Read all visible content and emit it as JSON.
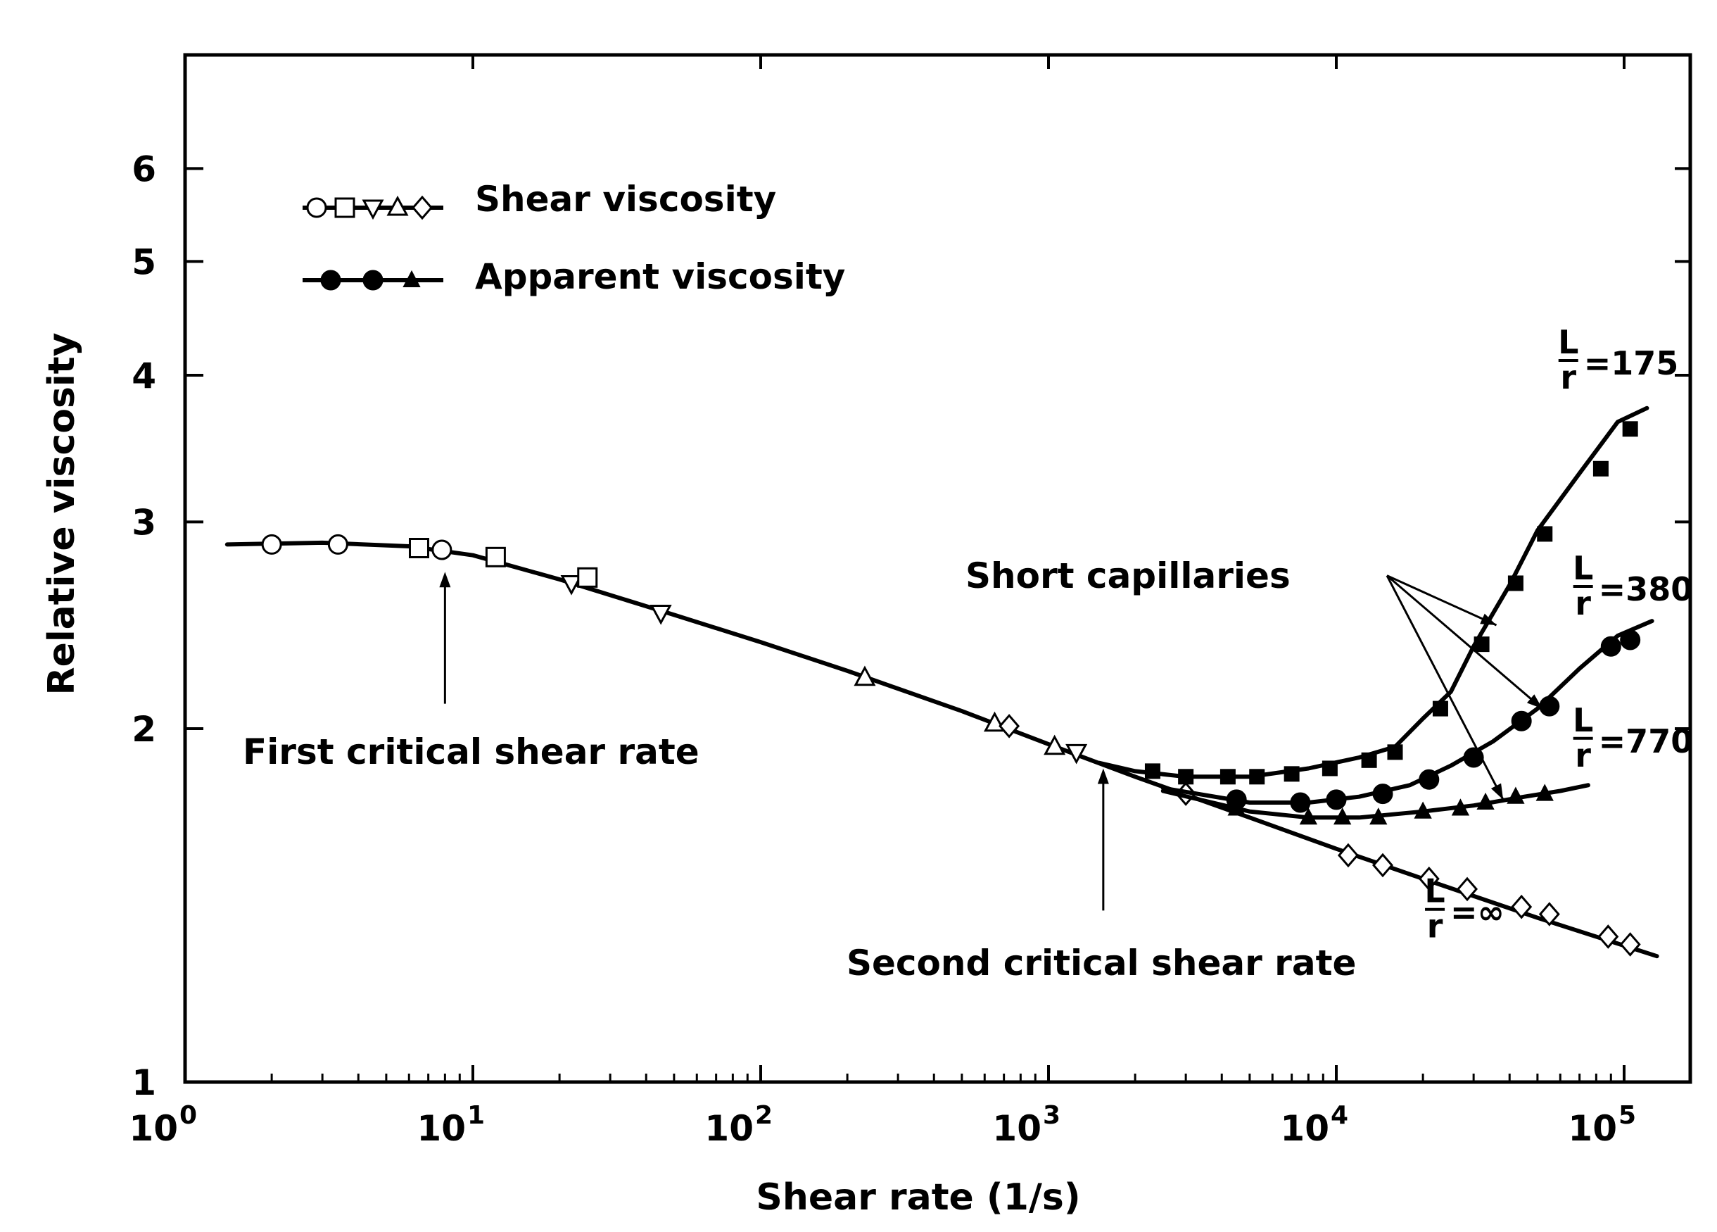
{
  "chart_data": {
    "type": "line",
    "xscale": "log",
    "yscale": "log",
    "xlabel": "Shear rate (1/s)",
    "ylabel": "Relative viscosity",
    "xlim": [
      1,
      150000
    ],
    "ylim": [
      1,
      7.5
    ],
    "x_ticks": [
      {
        "value": 1,
        "base": "10",
        "exp": "0"
      },
      {
        "value": 10,
        "base": "10",
        "exp": "1"
      },
      {
        "value": 100,
        "base": "10",
        "exp": "2"
      },
      {
        "value": 1000,
        "base": "10",
        "exp": "3"
      },
      {
        "value": 10000,
        "base": "10",
        "exp": "4"
      },
      {
        "value": 100000,
        "base": "10",
        "exp": "5"
      }
    ],
    "y_ticks": [
      {
        "value": 1,
        "label": "1"
      },
      {
        "value": 2,
        "label": "2"
      },
      {
        "value": 3,
        "label": "3"
      },
      {
        "value": 4,
        "label": "4"
      },
      {
        "value": 5,
        "label": "5"
      },
      {
        "value": 6,
        "label": "6"
      }
    ],
    "legend": {
      "placement": "top-left",
      "entries": [
        {
          "label": "Shear viscosity",
          "style": "open-markers"
        },
        {
          "label": "Apparent viscosity",
          "style": "filled-markers"
        }
      ]
    },
    "series": [
      {
        "name": "L/r = ∞ (shear viscosity)",
        "line": [
          [
            1.4,
            2.87
          ],
          [
            3,
            2.88
          ],
          [
            6,
            2.86
          ],
          [
            10,
            2.81
          ],
          [
            20,
            2.68
          ],
          [
            50,
            2.5
          ],
          [
            100,
            2.37
          ],
          [
            200,
            2.24
          ],
          [
            500,
            2.07
          ],
          [
            1000,
            1.94
          ],
          [
            2000,
            1.82
          ],
          [
            5000,
            1.68
          ],
          [
            10000,
            1.58
          ],
          [
            20000,
            1.49
          ],
          [
            50000,
            1.38
          ],
          [
            130000,
            1.28
          ]
        ],
        "markers": [
          {
            "x": 2,
            "y": 2.87,
            "shape": "circle"
          },
          {
            "x": 3.4,
            "y": 2.87,
            "shape": "circle"
          },
          {
            "x": 6.5,
            "y": 2.85,
            "shape": "square"
          },
          {
            "x": 7.8,
            "y": 2.84,
            "shape": "circle"
          },
          {
            "x": 12,
            "y": 2.8,
            "shape": "square"
          },
          {
            "x": 22,
            "y": 2.66,
            "shape": "tri-down"
          },
          {
            "x": 25,
            "y": 2.69,
            "shape": "square"
          },
          {
            "x": 45,
            "y": 2.51,
            "shape": "tri-down"
          },
          {
            "x": 230,
            "y": 2.21,
            "shape": "tri-up"
          },
          {
            "x": 650,
            "y": 2.02,
            "shape": "tri-up"
          },
          {
            "x": 730,
            "y": 2.01,
            "shape": "diamond"
          },
          {
            "x": 1050,
            "y": 1.93,
            "shape": "tri-up"
          },
          {
            "x": 1250,
            "y": 1.91,
            "shape": "tri-down"
          },
          {
            "x": 3000,
            "y": 1.76,
            "shape": "diamond"
          },
          {
            "x": 11000,
            "y": 1.56,
            "shape": "diamond"
          },
          {
            "x": 14500,
            "y": 1.53,
            "shape": "diamond"
          },
          {
            "x": 21000,
            "y": 1.49,
            "shape": "diamond"
          },
          {
            "x": 28500,
            "y": 1.46,
            "shape": "diamond"
          },
          {
            "x": 44000,
            "y": 1.41,
            "shape": "diamond"
          },
          {
            "x": 55000,
            "y": 1.39,
            "shape": "diamond"
          },
          {
            "x": 88000,
            "y": 1.33,
            "shape": "diamond"
          },
          {
            "x": 105000,
            "y": 1.31,
            "shape": "diamond"
          }
        ]
      },
      {
        "name": "L/r = 175",
        "line": [
          [
            1500,
            1.87
          ],
          [
            2000,
            1.84
          ],
          [
            3000,
            1.82
          ],
          [
            5000,
            1.82
          ],
          [
            8000,
            1.85
          ],
          [
            12000,
            1.89
          ],
          [
            16000,
            1.93
          ],
          [
            20000,
            2.04
          ],
          [
            25000,
            2.15
          ],
          [
            30000,
            2.35
          ],
          [
            40000,
            2.65
          ],
          [
            50000,
            2.95
          ],
          [
            70000,
            3.3
          ],
          [
            95000,
            3.65
          ],
          [
            120000,
            3.75
          ]
        ],
        "markers": [
          {
            "x": 2300,
            "y": 1.84,
            "shape": "square-filled"
          },
          {
            "x": 3000,
            "y": 1.82,
            "shape": "square-filled"
          },
          {
            "x": 4200,
            "y": 1.82,
            "shape": "square-filled"
          },
          {
            "x": 5300,
            "y": 1.82,
            "shape": "square-filled"
          },
          {
            "x": 7000,
            "y": 1.83,
            "shape": "square-filled"
          },
          {
            "x": 9500,
            "y": 1.85,
            "shape": "square-filled"
          },
          {
            "x": 13000,
            "y": 1.88,
            "shape": "square-filled"
          },
          {
            "x": 16000,
            "y": 1.91,
            "shape": "square-filled"
          },
          {
            "x": 23000,
            "y": 2.08,
            "shape": "square-filled"
          },
          {
            "x": 32000,
            "y": 2.36,
            "shape": "square-filled"
          },
          {
            "x": 42000,
            "y": 2.66,
            "shape": "square-filled"
          },
          {
            "x": 53000,
            "y": 2.93,
            "shape": "square-filled"
          },
          {
            "x": 83000,
            "y": 3.33,
            "shape": "square-filled"
          },
          {
            "x": 105000,
            "y": 3.6,
            "shape": "square-filled"
          }
        ]
      },
      {
        "name": "L/r = 380",
        "line": [
          [
            2500,
            1.78
          ],
          [
            5000,
            1.73
          ],
          [
            8000,
            1.73
          ],
          [
            12000,
            1.75
          ],
          [
            18000,
            1.79
          ],
          [
            25000,
            1.86
          ],
          [
            35000,
            1.95
          ],
          [
            50000,
            2.08
          ],
          [
            70000,
            2.25
          ],
          [
            95000,
            2.4
          ],
          [
            125000,
            2.47
          ]
        ],
        "markers": [
          {
            "x": 4500,
            "y": 1.74,
            "shape": "circle-filled"
          },
          {
            "x": 7500,
            "y": 1.73,
            "shape": "circle-filled"
          },
          {
            "x": 10000,
            "y": 1.74,
            "shape": "circle-filled"
          },
          {
            "x": 14500,
            "y": 1.76,
            "shape": "circle-filled"
          },
          {
            "x": 21000,
            "y": 1.81,
            "shape": "circle-filled"
          },
          {
            "x": 30000,
            "y": 1.89,
            "shape": "circle-filled"
          },
          {
            "x": 44000,
            "y": 2.03,
            "shape": "circle-filled"
          },
          {
            "x": 55000,
            "y": 2.09,
            "shape": "circle-filled"
          },
          {
            "x": 90000,
            "y": 2.35,
            "shape": "circle-filled"
          },
          {
            "x": 105000,
            "y": 2.38,
            "shape": "circle-filled"
          }
        ]
      },
      {
        "name": "L/r = 770",
        "line": [
          [
            2500,
            1.77
          ],
          [
            5000,
            1.7
          ],
          [
            8000,
            1.68
          ],
          [
            12000,
            1.68
          ],
          [
            20000,
            1.7
          ],
          [
            30000,
            1.72
          ],
          [
            45000,
            1.75
          ],
          [
            60000,
            1.77
          ],
          [
            75000,
            1.79
          ]
        ],
        "markers": [
          {
            "x": 4500,
            "y": 1.71,
            "shape": "tri-filled"
          },
          {
            "x": 8000,
            "y": 1.68,
            "shape": "tri-filled"
          },
          {
            "x": 10500,
            "y": 1.68,
            "shape": "tri-filled"
          },
          {
            "x": 14000,
            "y": 1.68,
            "shape": "tri-filled"
          },
          {
            "x": 20000,
            "y": 1.7,
            "shape": "tri-filled"
          },
          {
            "x": 27000,
            "y": 1.71,
            "shape": "tri-filled"
          },
          {
            "x": 33000,
            "y": 1.73,
            "shape": "tri-filled"
          },
          {
            "x": 42000,
            "y": 1.75,
            "shape": "tri-filled"
          },
          {
            "x": 53000,
            "y": 1.76,
            "shape": "tri-filled"
          }
        ]
      }
    ],
    "annotations": {
      "first_critical": {
        "label": "First critical shear rate",
        "x": 8,
        "arrow_from_y": 2.1,
        "arrow_to_y": 2.72
      },
      "second_critical": {
        "label": "Second critical shear rate",
        "x": 1550,
        "arrow_from_y": 1.4,
        "arrow_to_y": 1.85
      },
      "short_capillaries": {
        "label": "Short capillaries",
        "origin": {
          "x": 15000,
          "y": 2.7
        },
        "targets": [
          {
            "x": 36000,
            "y": 2.45
          },
          {
            "x": 52000,
            "y": 2.08
          },
          {
            "x": 38000,
            "y": 1.74
          }
        ]
      },
      "lr_labels": [
        {
          "num": "L",
          "den": "r",
          "value": "=175",
          "x": 64000,
          "y": 4.05
        },
        {
          "num": "L",
          "den": "r",
          "value": "=380",
          "x": 72000,
          "y": 2.6
        },
        {
          "num": "L",
          "den": "r",
          "value": "=770",
          "x": 72000,
          "y": 1.93
        },
        {
          "num": "L",
          "den": "r",
          "value": "=∞",
          "x": 22000,
          "y": 1.38
        }
      ]
    }
  }
}
